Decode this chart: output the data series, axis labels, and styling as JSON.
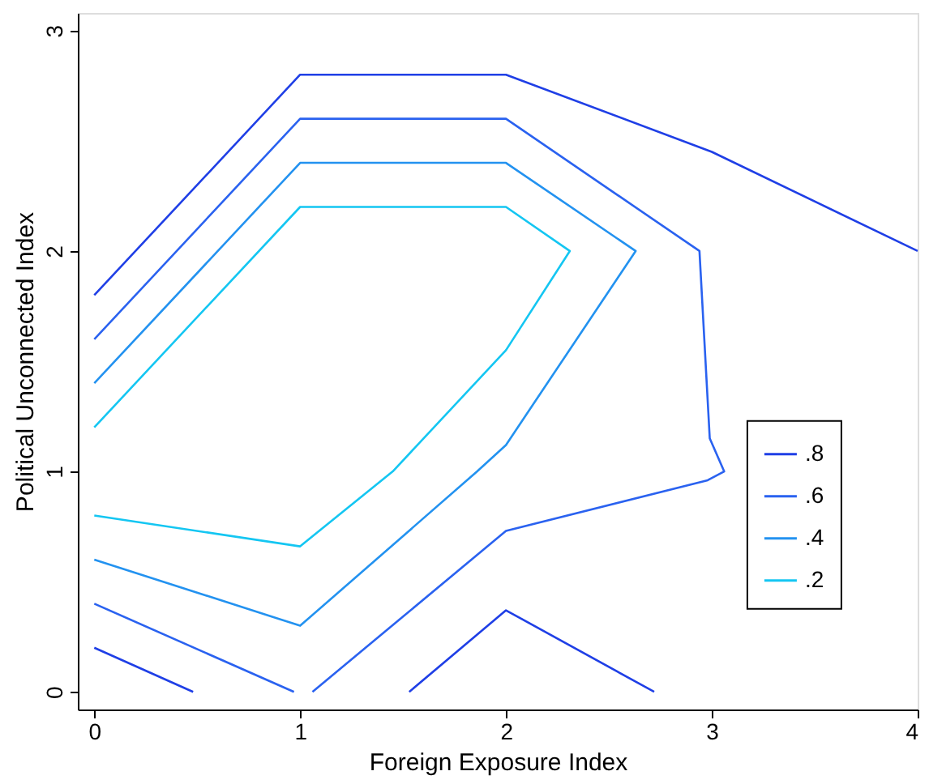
{
  "chart_data": {
    "type": "line",
    "xlabel": "Foreign Exposure Index",
    "ylabel": "Political Unconnected Index",
    "xlim": [
      -0.08,
      4.0
    ],
    "ylim": [
      -0.08,
      3.08
    ],
    "xticks": [
      0,
      1,
      2,
      3,
      4
    ],
    "yticks": [
      0,
      1,
      2,
      3
    ],
    "grid": false,
    "legend": "right",
    "line_style": "solid",
    "marker": "none",
    "series": [
      {
        "name": ".8",
        "color": "#1f3fe6",
        "x": [
          0,
          1,
          2,
          3,
          4,
          null,
          1.53,
          2,
          2.72,
          null,
          0,
          0.48
        ],
        "values": [
          1.8,
          2.8,
          2.8,
          2.45,
          2.0,
          null,
          0,
          0.37,
          0,
          null,
          0.2,
          0
        ]
      },
      {
        "name": ".6",
        "color": "#2a62f0",
        "x": [
          0,
          1,
          2,
          2.94,
          2.99,
          3.06,
          2.98,
          2,
          1.06,
          null,
          0,
          0.97
        ],
        "values": [
          1.6,
          2.6,
          2.6,
          2.0,
          1.15,
          1.0,
          0.96,
          0.73,
          0,
          null,
          0.4,
          0
        ]
      },
      {
        "name": ".4",
        "color": "#2392f0",
        "x": [
          0,
          1,
          2,
          2.63,
          2,
          1.86,
          1,
          0
        ],
        "values": [
          1.4,
          2.4,
          2.4,
          2.0,
          1.12,
          1.0,
          0.3,
          0.6
        ]
      },
      {
        "name": ".2",
        "color": "#14c6f2",
        "x": [
          0,
          1,
          2,
          2.31,
          2,
          1.45,
          1,
          0
        ],
        "values": [
          1.2,
          2.2,
          2.2,
          2.0,
          1.55,
          1.0,
          0.66,
          0.8
        ]
      }
    ]
  }
}
